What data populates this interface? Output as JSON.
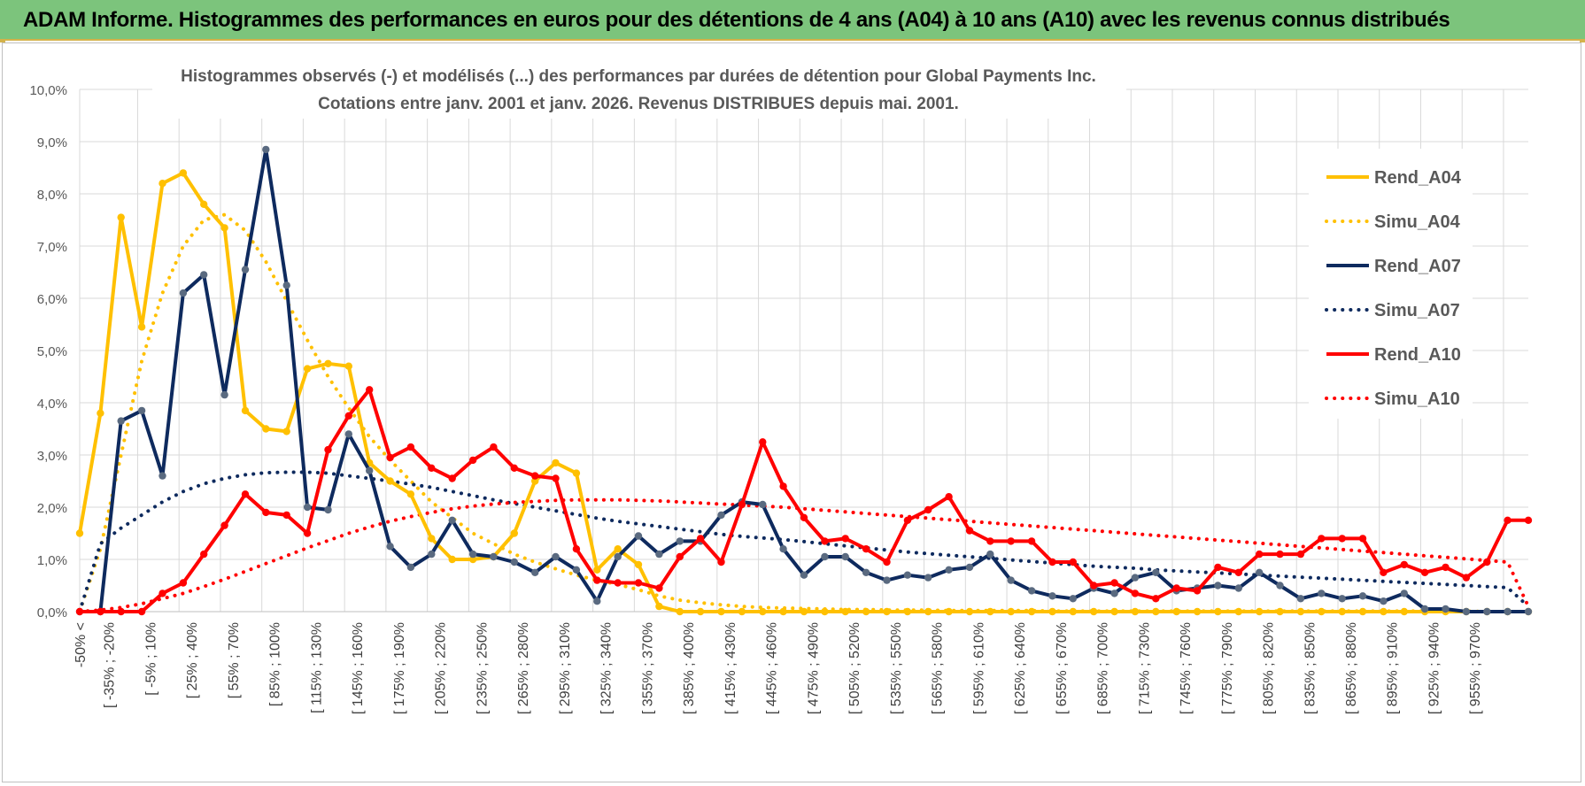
{
  "header": {
    "title": "ADAM Informe. Histogrammes des performances en euros pour des détentions de 4 ans (A04) à 10 ans (A10) avec les revenus connus distribués"
  },
  "chart_data": {
    "type": "line",
    "title_line1": "Histogrammes observés (-) et modélisés (...) des performances par durées de détention pour Global Payments Inc.",
    "title_line2": "Cotations entre janv. 2001 et janv. 2026. Revenus DISTRIBUES depuis mai. 2001.",
    "xlabel": "",
    "ylabel": "",
    "ylim": [
      0,
      10
    ],
    "grid": true,
    "legend_position": "right",
    "y_tick_labels": [
      "0,0%",
      "1,0%",
      "2,0%",
      "3,0%",
      "4,0%",
      "5,0%",
      "6,0%",
      "7,0%",
      "8,0%",
      "9,0%",
      "10,0%"
    ],
    "x_tick_labels": [
      "-50% <",
      "[ -35% ; -20%",
      "[ -5% ; 10%",
      "[ 25% ; 40%",
      "[ 55% ; 70%",
      "[ 85% ; 100%",
      "[ 115% ; 130%",
      "[ 145% ; 160%",
      "[ 175% ; 190%",
      "[ 205% ; 220%",
      "[ 235% ; 250%",
      "[ 265% ; 280%",
      "[ 295% ; 310%",
      "[ 325% ; 340%",
      "[ 355% ; 370%",
      "[ 385% ; 400%",
      "[ 415% ; 430%",
      "[ 445% ; 460%",
      "[ 475% ; 490%",
      "[ 505% ; 520%",
      "[ 535% ; 550%",
      "[ 565% ; 580%",
      "[ 595% ; 610%",
      "[ 625% ; 640%",
      "[ 655% ; 670%",
      "[ 685% ; 700%",
      "[ 715% ; 730%",
      "[ 745% ; 760%",
      "[ 775% ; 790%",
      "[ 805% ; 820%",
      "[ 835% ; 850%",
      "[ 865% ; 880%",
      "[ 895% ; 910%",
      "[ 925% ; 940%",
      "[ 955% ; 970%"
    ],
    "n_points": 71,
    "series": [
      {
        "name": "Rend_A04",
        "style": "solid",
        "color": "#ffc000",
        "values": [
          1.5,
          3.8,
          7.55,
          5.45,
          8.2,
          8.4,
          7.8,
          7.35,
          3.85,
          3.5,
          3.45,
          4.65,
          4.75,
          4.7,
          2.85,
          2.5,
          2.25,
          1.4,
          1.0,
          1.0,
          1.05,
          1.5,
          2.5,
          2.85,
          2.65,
          0.8,
          1.2,
          0.9,
          0.1,
          0,
          0,
          0,
          0,
          0,
          0,
          0,
          0,
          0,
          0,
          0,
          0,
          0,
          0,
          0,
          0,
          0,
          0,
          0,
          0,
          0,
          0,
          0,
          0,
          0,
          0,
          0,
          0,
          0,
          0,
          0,
          0,
          0,
          0,
          0,
          0,
          0,
          0,
          0,
          0,
          0,
          0
        ]
      },
      {
        "name": "Simu_A04",
        "style": "dotted",
        "color": "#ffc000",
        "values": [
          0,
          1.2,
          3.0,
          4.8,
          6.1,
          7.0,
          7.5,
          7.6,
          7.3,
          6.7,
          5.95,
          5.2,
          4.5,
          3.9,
          3.35,
          2.9,
          2.5,
          2.1,
          1.8,
          1.5,
          1.3,
          1.1,
          0.95,
          0.82,
          0.7,
          0.6,
          0.52,
          0.42,
          0.3,
          0.22,
          0.17,
          0.13,
          0.1,
          0.08,
          0.07,
          0.06,
          0.05,
          0.04,
          0.04,
          0.03,
          0.03,
          0.03,
          0.02,
          0.02,
          0.02,
          0.02,
          0.02,
          0.01,
          0.01,
          0.01,
          0.01,
          0.01,
          0.01,
          0.01,
          0.01,
          0.01,
          0.01,
          0.01,
          0.01,
          0.01,
          0.01,
          0.01,
          0.01,
          0.01,
          0.01,
          0.01,
          0.01,
          0.01,
          0,
          0,
          0
        ]
      },
      {
        "name": "Rend_A07",
        "style": "solid",
        "color": "#0e2a5e",
        "values": [
          0,
          0,
          3.65,
          3.85,
          2.6,
          6.1,
          6.45,
          4.15,
          6.55,
          8.85,
          6.25,
          2.0,
          1.95,
          3.4,
          2.7,
          1.25,
          0.85,
          1.1,
          1.75,
          1.1,
          1.05,
          0.95,
          0.75,
          1.05,
          0.8,
          0.2,
          1.05,
          1.45,
          1.1,
          1.35,
          1.35,
          1.85,
          2.1,
          2.05,
          1.2,
          0.7,
          1.05,
          1.05,
          0.75,
          0.6,
          0.7,
          0.65,
          0.8,
          0.85,
          1.1,
          0.6,
          0.4,
          0.3,
          0.25,
          0.45,
          0.35,
          0.65,
          0.75,
          0.4,
          0.45,
          0.5,
          0.45,
          0.75,
          0.5,
          0.25,
          0.35,
          0.25,
          0.3,
          0.2,
          0.35,
          0.05,
          0.05,
          0,
          0,
          0,
          0
        ]
      },
      {
        "name": "Simu_A07",
        "style": "dotted",
        "color": "#0e2a5e",
        "values": [
          0,
          1.3,
          1.6,
          1.85,
          2.1,
          2.3,
          2.45,
          2.55,
          2.62,
          2.66,
          2.67,
          2.67,
          2.65,
          2.6,
          2.55,
          2.5,
          2.44,
          2.38,
          2.3,
          2.22,
          2.14,
          2.07,
          2.0,
          1.93,
          1.86,
          1.79,
          1.73,
          1.68,
          1.63,
          1.58,
          1.53,
          1.48,
          1.44,
          1.41,
          1.38,
          1.34,
          1.3,
          1.26,
          1.22,
          1.18,
          1.14,
          1.11,
          1.08,
          1.05,
          1.02,
          0.99,
          0.96,
          0.93,
          0.9,
          0.87,
          0.85,
          0.83,
          0.8,
          0.78,
          0.76,
          0.74,
          0.72,
          0.7,
          0.68,
          0.66,
          0.64,
          0.62,
          0.6,
          0.58,
          0.56,
          0.54,
          0.52,
          0.5,
          0.48,
          0.46,
          0.1
        ]
      },
      {
        "name": "Rend_A10",
        "style": "solid",
        "color": "#ff0000",
        "values": [
          0,
          0,
          0,
          0,
          0.35,
          0.55,
          1.1,
          1.65,
          2.25,
          1.9,
          1.85,
          1.5,
          3.1,
          3.75,
          4.25,
          2.95,
          3.15,
          2.75,
          2.55,
          2.9,
          3.15,
          2.75,
          2.6,
          2.55,
          1.2,
          0.6,
          0.55,
          0.55,
          0.45,
          1.05,
          1.4,
          0.95,
          2.05,
          3.25,
          2.4,
          1.8,
          1.35,
          1.4,
          1.2,
          0.95,
          1.75,
          1.95,
          2.2,
          1.55,
          1.35,
          1.35,
          1.35,
          0.95,
          0.95,
          0.5,
          0.55,
          0.35,
          0.25,
          0.45,
          0.4,
          0.85,
          0.75,
          1.1,
          1.1,
          1.1,
          1.4,
          1.4,
          1.4,
          0.75,
          0.9,
          0.75,
          0.85,
          0.65,
          0.95,
          1.75,
          1.75
        ]
      },
      {
        "name": "Simu_A10",
        "style": "dotted",
        "color": "#ff0000",
        "values": [
          0,
          0.03,
          0.08,
          0.15,
          0.25,
          0.35,
          0.48,
          0.62,
          0.77,
          0.92,
          1.07,
          1.22,
          1.36,
          1.5,
          1.62,
          1.73,
          1.82,
          1.9,
          1.97,
          2.02,
          2.06,
          2.09,
          2.11,
          2.13,
          2.14,
          2.14,
          2.14,
          2.13,
          2.12,
          2.1,
          2.08,
          2.06,
          2.04,
          2.02,
          2.0,
          1.97,
          1.94,
          1.91,
          1.88,
          1.85,
          1.82,
          1.79,
          1.76,
          1.73,
          1.7,
          1.67,
          1.64,
          1.61,
          1.58,
          1.55,
          1.52,
          1.49,
          1.46,
          1.43,
          1.4,
          1.37,
          1.34,
          1.31,
          1.28,
          1.25,
          1.22,
          1.19,
          1.16,
          1.13,
          1.1,
          1.07,
          1.04,
          1.01,
          0.98,
          0.95,
          0.1
        ]
      }
    ]
  }
}
